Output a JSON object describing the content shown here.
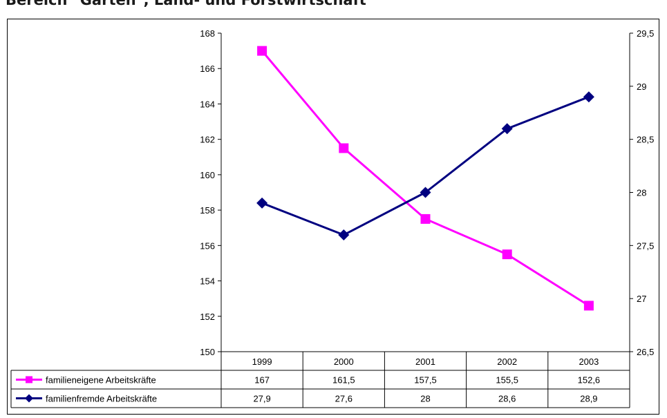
{
  "title": "Bereich \"Garten\", Land- und Forstwirtschaft",
  "colors": {
    "series1": "#ff00ff",
    "series2": "#000080"
  },
  "chart_data": {
    "type": "line",
    "title": "Bereich \"Garten\", Land- und Forstwirtschaft",
    "categories": [
      "1999",
      "2000",
      "2001",
      "2002",
      "2003"
    ],
    "series": [
      {
        "name": "familieneigene Arbeitskräfte",
        "axis": "left",
        "marker": "square",
        "values": [
          167,
          161.5,
          157.5,
          155.5,
          152.6
        ],
        "labels": [
          "167",
          "161,5",
          "157,5",
          "155,5",
          "152,6"
        ]
      },
      {
        "name": "familienfremde Arbeitskräfte",
        "axis": "right",
        "marker": "diamond",
        "values": [
          27.9,
          27.6,
          28,
          28.6,
          28.9
        ],
        "labels": [
          "27,9",
          "27,6",
          "28",
          "28,6",
          "28,9"
        ]
      }
    ],
    "y_left": {
      "range": [
        150,
        168
      ],
      "ticks": [
        "150",
        "152",
        "154",
        "156",
        "158",
        "160",
        "162",
        "164",
        "166",
        "168"
      ]
    },
    "y_right": {
      "range": [
        26.5,
        29.5
      ],
      "ticks": [
        "26,5",
        "27",
        "27,5",
        "28",
        "28,5",
        "29",
        "29,5"
      ]
    },
    "grid": false,
    "data_table": true
  }
}
